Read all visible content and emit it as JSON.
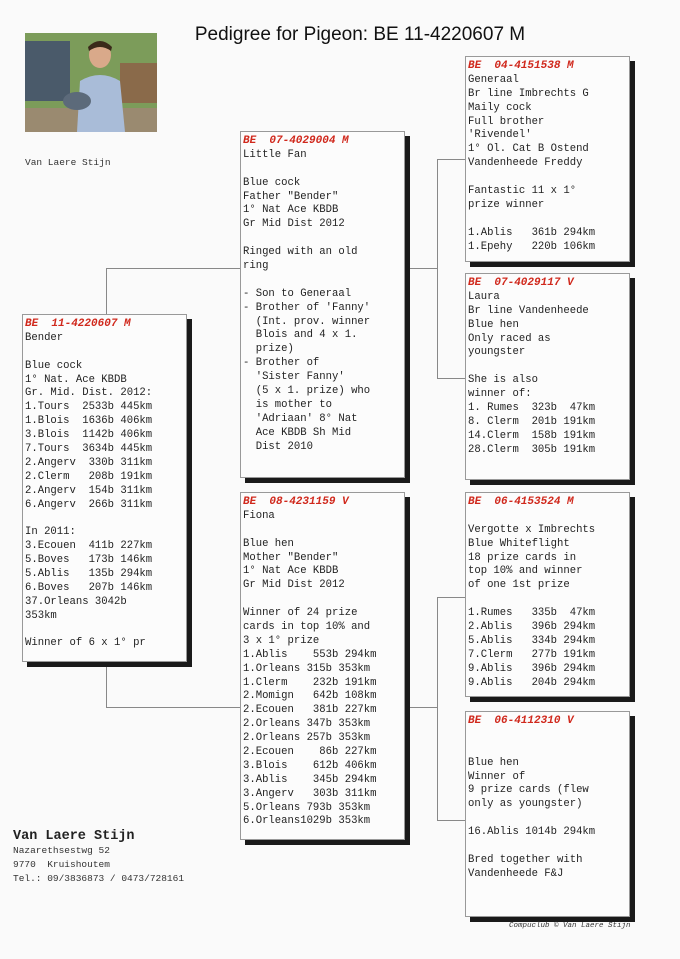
{
  "title": "Pedigree for Pigeon: BE  11-4220607 M",
  "photo_caption": "Van Laere Stijn",
  "colors": {
    "ring": "#d0281c",
    "shadow": "#1a1a1a"
  },
  "boxes": {
    "subject": {
      "ring": "BE  11-4220607 M",
      "lines": [
        "Bender",
        "",
        "Blue cock",
        "1° Nat. Ace KBDB",
        "Gr. Mid. Dist. 2012:",
        "1.Tours  2533b 445km",
        "1.Blois  1636b 406km",
        "3.Blois  1142b 406km",
        "7.Tours  3634b 445km",
        "2.Angerv  330b 311km",
        "2.Clerm   208b 191km",
        "2.Angerv  154b 311km",
        "6.Angerv  266b 311km",
        "",
        "In 2011:",
        "3.Ecouen  411b 227km",
        "5.Boves   173b 146km",
        "5.Ablis   135b 294km",
        "6.Boves   207b 146km",
        "37.Orleans 3042b",
        "353km",
        "",
        "Winner of 6 x 1° pr"
      ]
    },
    "sire": {
      "ring": "BE  07-4029004 M",
      "lines": [
        "Little Fan",
        "",
        "Blue cock",
        "Father \"Bender\"",
        "1° Nat Ace KBDB",
        "Gr Mid Dist 2012",
        "",
        "Ringed with an old",
        "ring",
        "",
        "- Son to Generaal",
        "- Brother of 'Fanny'",
        "  (Int. prov. winner",
        "  Blois and 4 x 1.",
        "  prize)",
        "- Brother of",
        "  'Sister Fanny'",
        "  (5 x 1. prize) who",
        "  is mother to",
        "  'Adriaan' 8° Nat",
        "  Ace KBDB Sh Mid",
        "  Dist 2010"
      ]
    },
    "dam": {
      "ring": "BE  08-4231159 V",
      "lines": [
        "Fiona",
        "",
        "Blue hen",
        "Mother \"Bender\"",
        "1° Nat Ace KBDB",
        "Gr Mid Dist 2012",
        "",
        "Winner of 24 prize",
        "cards in top 10% and",
        "3 x 1° prize",
        "1.Ablis    553b 294km",
        "1.Orleans 315b 353km",
        "1.Clerm    232b 191km",
        "2.Momign   642b 108km",
        "2.Ecouen   381b 227km",
        "2.Orleans 347b 353km",
        "2.Orleans 257b 353km",
        "2.Ecouen    86b 227km",
        "3.Blois    612b 406km",
        "3.Ablis    345b 294km",
        "3.Angerv   303b 311km",
        "5.Orleans 793b 353km",
        "6.Orleans1029b 353km"
      ]
    },
    "sire_sire": {
      "ring": "BE  04-4151538 M",
      "lines": [
        "Generaal",
        "Br line Imbrechts G",
        "Maily cock",
        "Full brother",
        "'Rivendel'",
        "1° Ol. Cat B Ostend",
        "Vandenheede Freddy",
        "",
        "Fantastic 11 x 1°",
        "prize winner",
        "",
        "1.Ablis   361b 294km",
        "1.Epehy   220b 106km"
      ]
    },
    "sire_dam": {
      "ring": "BE  07-4029117 V",
      "lines": [
        "Laura",
        "Br line Vandenheede",
        "Blue hen",
        "Only raced as",
        "youngster",
        "",
        "She is also",
        "winner of:",
        "1. Rumes  323b  47km",
        "8. Clerm  201b 191km",
        "14.Clerm  158b 191km",
        "28.Clerm  305b 191km"
      ]
    },
    "dam_sire": {
      "ring": "BE  06-4153524 M",
      "lines": [
        "",
        "Vergotte x Imbrechts",
        "Blue Whiteflight",
        "18 prize cards in",
        "top 10% and winner",
        "of one 1st prize",
        "",
        "1.Rumes   335b  47km",
        "2.Ablis   396b 294km",
        "5.Ablis   334b 294km",
        "7.Clerm   277b 191km",
        "9.Ablis   396b 294km",
        "9.Ablis   204b 294km"
      ]
    },
    "dam_dam": {
      "ring": "BE  06-4112310 V",
      "lines": [
        "",
        "",
        "Blue hen",
        "Winner of",
        "9 prize cards (flew",
        "only as youngster)",
        "",
        "16.Ablis 1014b 294km",
        "",
        "Bred together with",
        "Vandenheede F&J"
      ]
    }
  },
  "contact": {
    "name": "Van Laere Stijn",
    "street": "Nazarethsestwg 52",
    "city": "9770  Kruishoutem",
    "phone": "Tel.: 09/3836873 / 0473/728161"
  },
  "footer": "Compuclub © Van Laere Stijn"
}
